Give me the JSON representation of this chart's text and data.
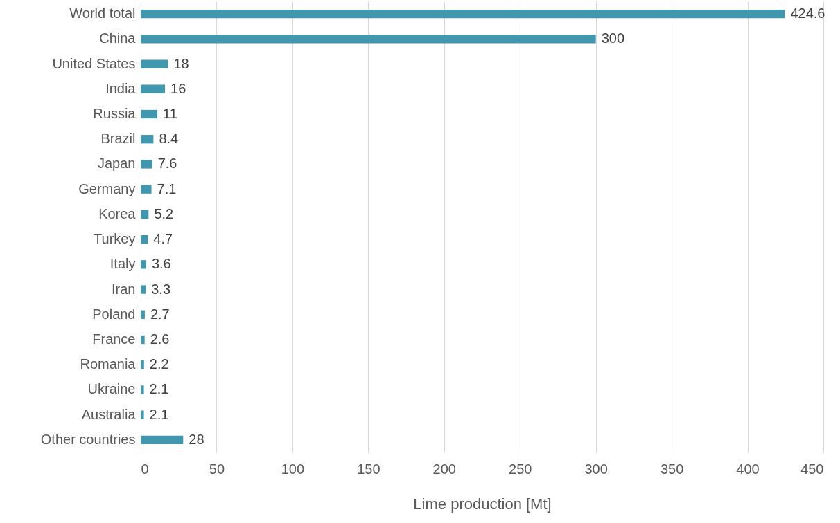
{
  "chart_data": {
    "type": "bar",
    "orientation": "horizontal",
    "xlabel": "Lime production [Mt]",
    "categories": [
      "World total",
      "China",
      "United States",
      "India",
      "Russia",
      "Brazil",
      "Japan",
      "Germany",
      "Korea",
      "Turkey",
      "Italy",
      "Iran",
      "Poland",
      "France",
      "Romania",
      "Ukraine",
      "Australia",
      "Other countries"
    ],
    "values": [
      424.6,
      300,
      18,
      16,
      11,
      8.4,
      7.6,
      7.1,
      5.2,
      4.7,
      3.6,
      3.3,
      2.7,
      2.6,
      2.2,
      2.1,
      2.1,
      28
    ],
    "color": "#4197ad",
    "xlim": [
      0,
      450
    ],
    "xticks": [
      0,
      50,
      100,
      150,
      200,
      250,
      300,
      350,
      400,
      450
    ],
    "grid": "x",
    "data_labels": true
  }
}
